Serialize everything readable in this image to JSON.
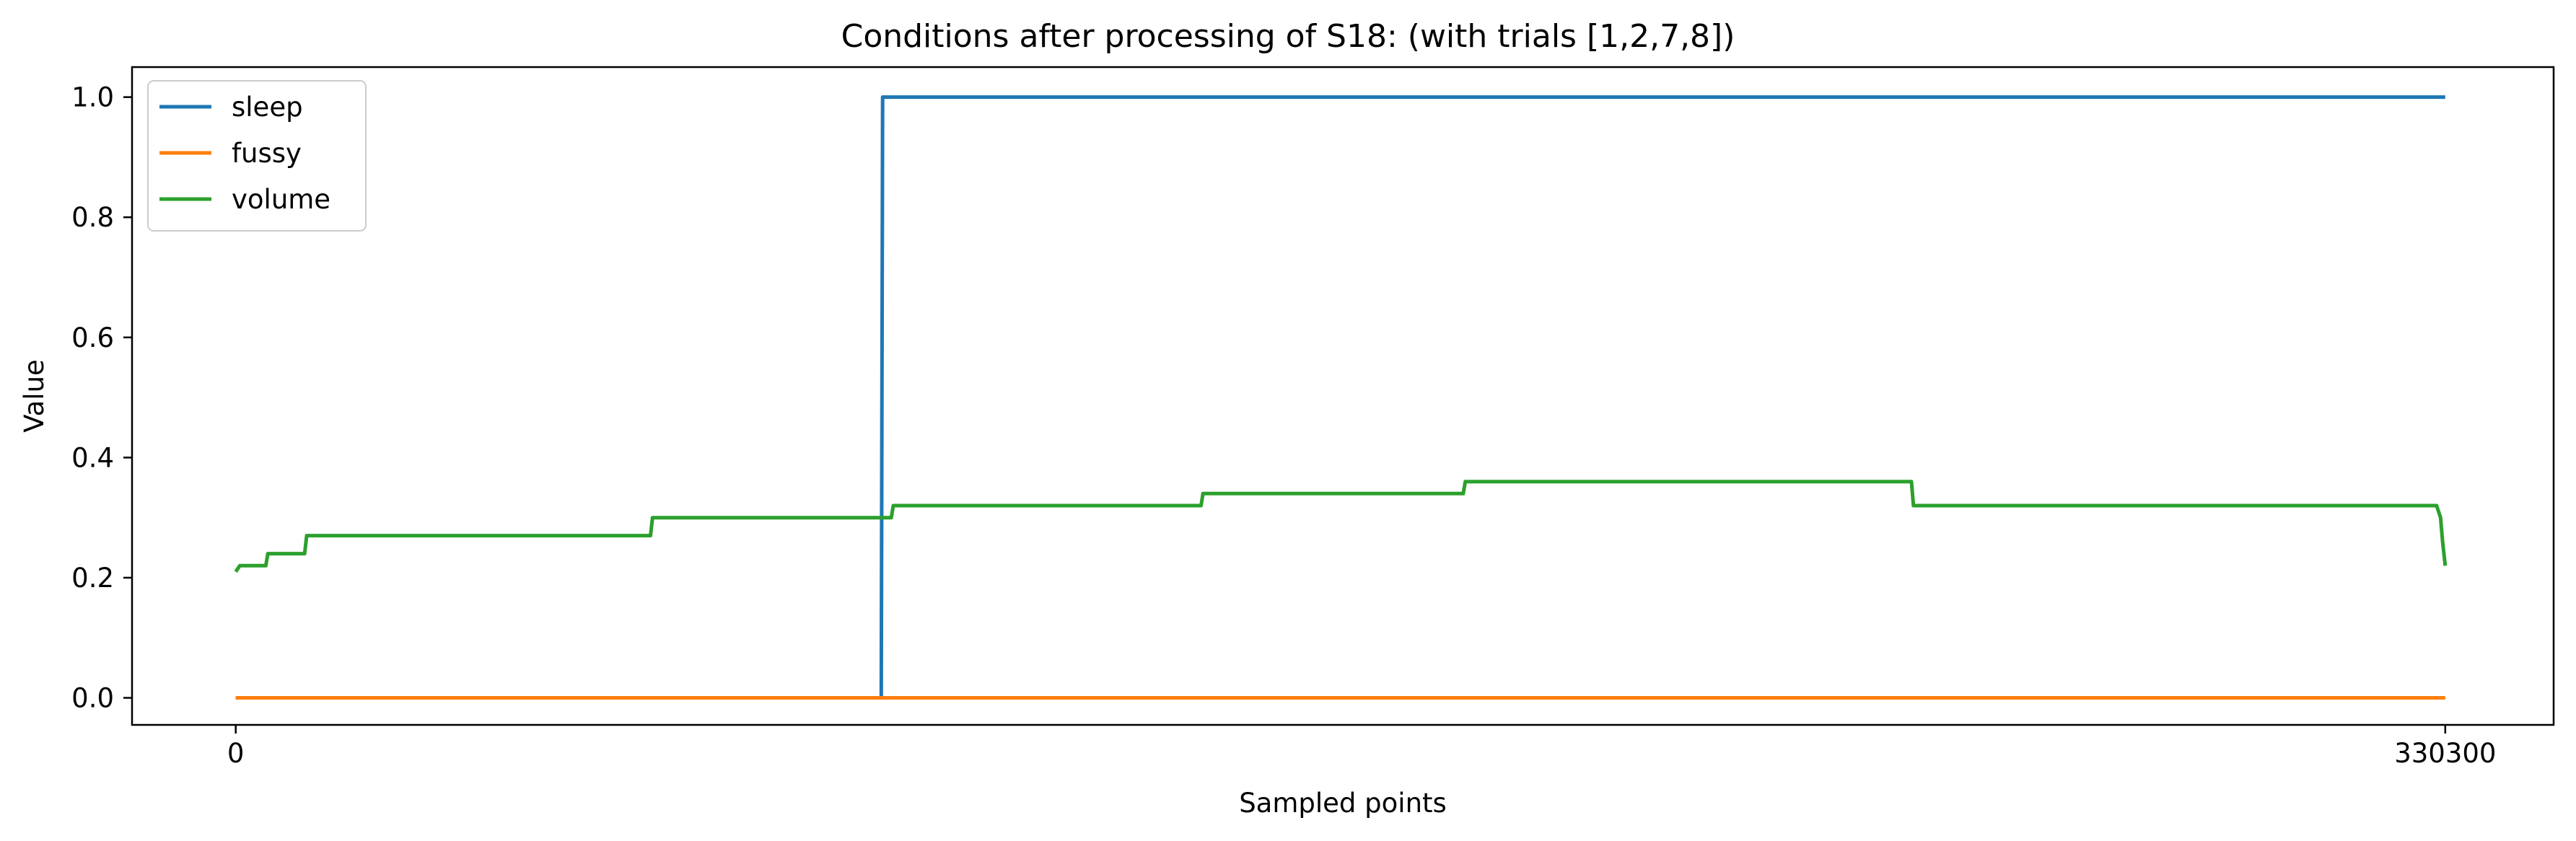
{
  "chart_data": {
    "type": "line",
    "title": "Conditions after processing of S18: (with trials [1,2,7,8])",
    "xlabel": "Sampled points",
    "ylabel": "Value",
    "xlim": [
      -15500,
      346500
    ],
    "ylim": [
      -0.045,
      1.05
    ],
    "xticks": [
      0,
      330300
    ],
    "xtick_labels": [
      "0",
      "330300"
    ],
    "yticks": [
      0.0,
      0.2,
      0.4,
      0.6,
      0.8,
      1.0
    ],
    "ytick_labels": [
      "0.0",
      "0.2",
      "0.4",
      "0.6",
      "0.8",
      "1.0"
    ],
    "grid": false,
    "legend_position": "top-left",
    "series": [
      {
        "name": "sleep",
        "color": "#1f77b4",
        "points": [
          [
            0,
            0.0
          ],
          [
            96500,
            0.0
          ],
          [
            96700,
            1.0
          ],
          [
            330300,
            1.0
          ]
        ]
      },
      {
        "name": "fussy",
        "color": "#ff7f0e",
        "points": [
          [
            0,
            0.0
          ],
          [
            330300,
            0.0
          ]
        ]
      },
      {
        "name": "volume",
        "color": "#2ca02c",
        "points": [
          [
            0,
            0.21
          ],
          [
            600,
            0.22
          ],
          [
            4500,
            0.22
          ],
          [
            4800,
            0.24
          ],
          [
            10300,
            0.24
          ],
          [
            10600,
            0.27
          ],
          [
            62000,
            0.27
          ],
          [
            62300,
            0.3
          ],
          [
            98000,
            0.3
          ],
          [
            98300,
            0.32
          ],
          [
            144300,
            0.32
          ],
          [
            144600,
            0.34
          ],
          [
            183500,
            0.34
          ],
          [
            183800,
            0.36
          ],
          [
            250500,
            0.36
          ],
          [
            250800,
            0.32
          ],
          [
            329000,
            0.32
          ],
          [
            329600,
            0.3
          ],
          [
            329900,
            0.26
          ],
          [
            330300,
            0.22
          ]
        ]
      }
    ]
  }
}
